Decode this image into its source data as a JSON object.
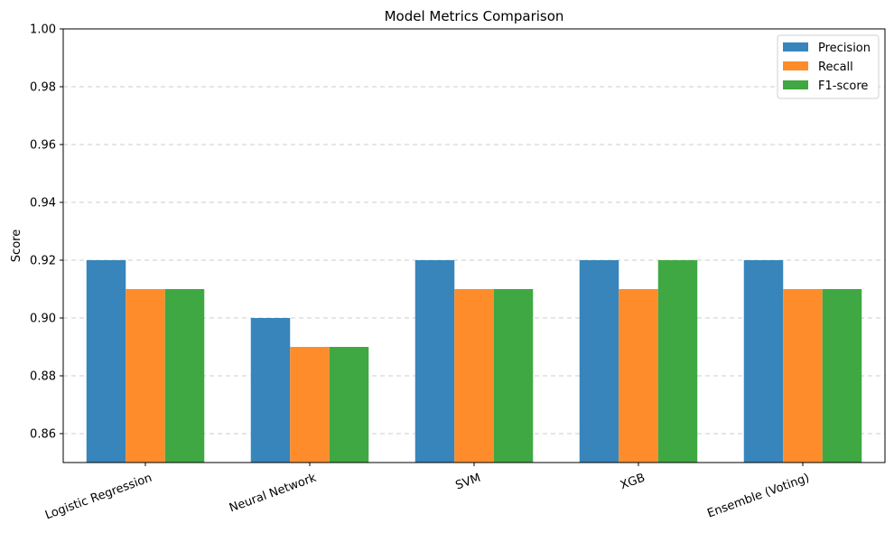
{
  "chart_data": {
    "type": "bar",
    "title": "Model Metrics Comparison",
    "xlabel": "",
    "ylabel": "Score",
    "ylim": [
      0.85,
      1.0
    ],
    "yticks": [
      0.86,
      0.88,
      0.9,
      0.92,
      0.94,
      0.96,
      0.98,
      1.0
    ],
    "ytick_labels": [
      "0.86",
      "0.88",
      "0.90",
      "0.92",
      "0.94",
      "0.96",
      "0.98",
      "1.00"
    ],
    "grid": "y-dashed",
    "legend_position": "top-right",
    "categories": [
      "Logistic Regression",
      "Neural Network",
      "SVM",
      "XGB",
      "Ensemble (Voting)"
    ],
    "series": [
      {
        "name": "Precision",
        "color": "#3785bb",
        "values": [
          0.92,
          0.9,
          0.92,
          0.92,
          0.92
        ]
      },
      {
        "name": "Recall",
        "color": "#fe8c2b",
        "values": [
          0.91,
          0.89,
          0.91,
          0.91,
          0.91
        ]
      },
      {
        "name": "F1-score",
        "color": "#40a842",
        "values": [
          0.91,
          0.89,
          0.91,
          0.92,
          0.91
        ]
      }
    ]
  }
}
